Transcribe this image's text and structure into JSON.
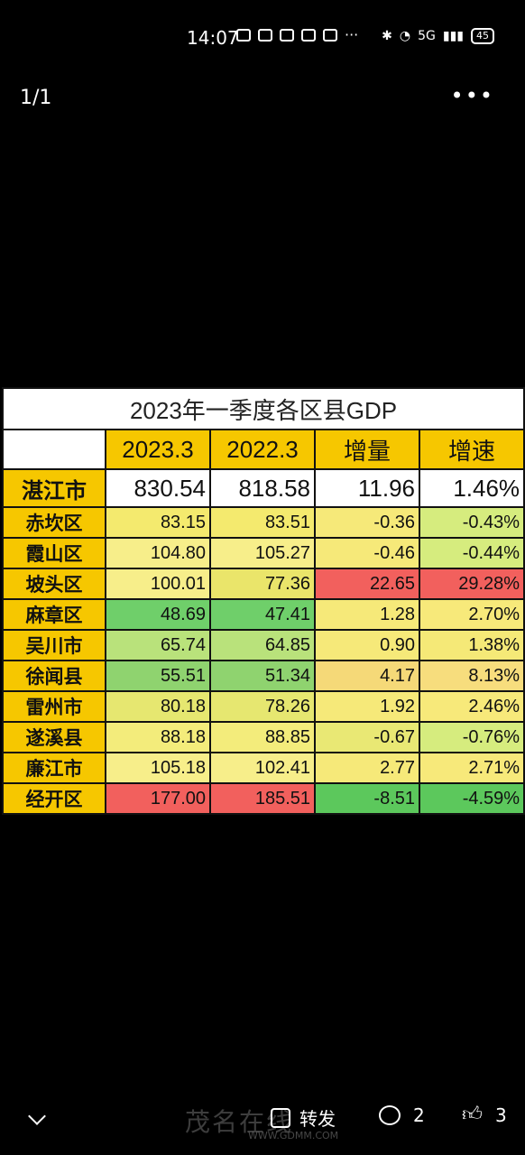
{
  "status_bar": {
    "time": "14:07",
    "battery": "45",
    "network": "5G"
  },
  "top_bar": {
    "page_counter": "1/1",
    "more_icon": "•••"
  },
  "table": {
    "title": "2023年一季度各区县GDP",
    "headers": [
      "2023.3",
      "2022.3",
      "增量",
      "增速"
    ],
    "rows": [
      {
        "name": "湛江市",
        "v2023": "830.54",
        "v2022": "818.58",
        "inc": "11.96",
        "rate": "1.46%",
        "colors": [
          "#ffffff",
          "#ffffff",
          "#ffffff",
          "#ffffff"
        ]
      },
      {
        "name": "赤坎区",
        "v2023": "83.15",
        "v2022": "83.51",
        "inc": "-0.36",
        "rate": "-0.43%",
        "colors": [
          "#f4ea6e",
          "#f4ea6e",
          "#f6e979",
          "#d6ec7e"
        ]
      },
      {
        "name": "霞山区",
        "v2023": "104.80",
        "v2022": "105.27",
        "inc": "-0.46",
        "rate": "-0.44%",
        "colors": [
          "#f7ee8a",
          "#f7ee8a",
          "#f6e979",
          "#d6ec7e"
        ]
      },
      {
        "name": "坡头区",
        "v2023": "100.01",
        "v2022": "77.36",
        "inc": "22.65",
        "rate": "29.28%",
        "colors": [
          "#f7ee8a",
          "#eae56a",
          "#f2605d",
          "#f2605d"
        ]
      },
      {
        "name": "麻章区",
        "v2023": "48.69",
        "v2022": "47.41",
        "inc": "1.28",
        "rate": "2.70%",
        "colors": [
          "#6fcf6a",
          "#6fcf6a",
          "#f6e979",
          "#f7e97a"
        ]
      },
      {
        "name": "吴川市",
        "v2023": "65.74",
        "v2022": "64.85",
        "inc": "0.90",
        "rate": "1.38%",
        "colors": [
          "#b9e27b",
          "#b9e27b",
          "#f6e979",
          "#f5e977"
        ]
      },
      {
        "name": "徐闻县",
        "v2023": "55.51",
        "v2022": "51.34",
        "inc": "4.17",
        "rate": "8.13%",
        "colors": [
          "#8fd36f",
          "#8fd36f",
          "#f5d978",
          "#f7dd7d"
        ]
      },
      {
        "name": "雷州市",
        "v2023": "80.18",
        "v2022": "78.26",
        "inc": "1.92",
        "rate": "2.46%",
        "colors": [
          "#e6e770",
          "#e6e770",
          "#f6e979",
          "#f7e97a"
        ]
      },
      {
        "name": "遂溪县",
        "v2023": "88.18",
        "v2022": "88.85",
        "inc": "-0.67",
        "rate": "-0.76%",
        "colors": [
          "#f3ec7b",
          "#f3ec7b",
          "#e9e874",
          "#d6ec7e"
        ]
      },
      {
        "name": "廉江市",
        "v2023": "105.18",
        "v2022": "102.41",
        "inc": "2.77",
        "rate": "2.71%",
        "colors": [
          "#f7ee8a",
          "#f7ee8a",
          "#f6e979",
          "#f7e97a"
        ]
      },
      {
        "name": "经开区",
        "v2023": "177.00",
        "v2022": "185.51",
        "inc": "-8.51",
        "rate": "-4.59%",
        "colors": [
          "#f2605d",
          "#f2605d",
          "#5cc85c",
          "#5cc85c"
        ]
      }
    ]
  },
  "bottom_bar": {
    "share_label": "转发",
    "comment_count": "2",
    "like_count": "3",
    "watermark": "茂名在线",
    "watermark_url": "WWW.GDMM.COM"
  }
}
